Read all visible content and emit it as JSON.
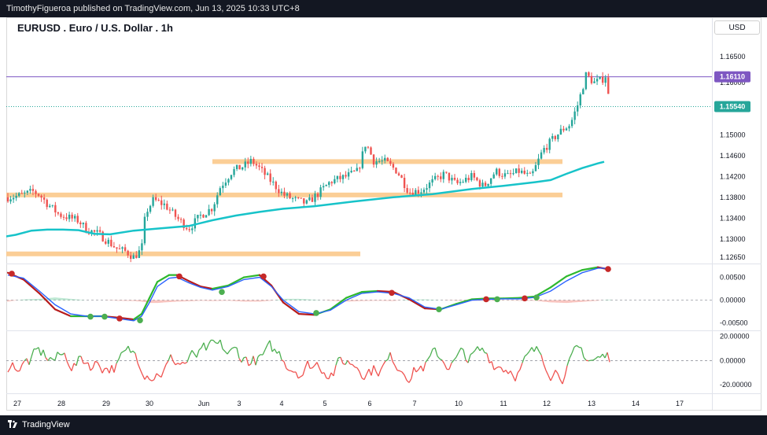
{
  "header": {
    "published_text": "TimothyFigueroa published on TradingView.com, Jun 13, 2025 10:33 UTC+8"
  },
  "chart_title": "EURUSD . Euro / U.S. Dollar . 1h",
  "currency_button": "USD",
  "footer": {
    "brand": "TradingView"
  },
  "colors": {
    "candle_up": "#26a69a",
    "candle_down": "#ef5350",
    "moving_average": "#17c3c9",
    "zone": "#fbc98b",
    "price_line": "#7e57c2",
    "current_price_badge": "#26a69a",
    "macd_fast": "#2962ff",
    "macd_slow_up": "#2eb82e",
    "macd_slow_down": "#b71c1c",
    "osc_up": "#4caf50",
    "osc_down": "#ef5350",
    "dot_up": "#4caf50",
    "dot_down": "#c62828"
  },
  "chart_data": [
    {
      "type": "candlestick",
      "panel": "price",
      "title": "EURUSD . Euro / U.S. Dollar . 1h",
      "y_axis_ticks": [
        "1.16500",
        "1.16000",
        "1.15000",
        "1.14600",
        "1.14200",
        "1.13800",
        "1.13400",
        "1.13000",
        "1.12650"
      ],
      "ylim": [
        1.1253,
        1.1695
      ],
      "price_line": {
        "label": "1.16110",
        "value": 1.1611
      },
      "current_price": {
        "label": "1.15540",
        "value": 1.1554
      },
      "x_ticks": [
        "27",
        "28",
        "29",
        "30",
        "Jun",
        "3",
        "4",
        "5",
        "6",
        "7",
        "10",
        "11",
        "12",
        "13",
        "14",
        "17"
      ],
      "moving_average_approx": [
        [
          0,
          1.1303
        ],
        [
          20,
          1.1308
        ],
        [
          40,
          1.1316
        ],
        [
          60,
          1.1318
        ],
        [
          80,
          1.1318
        ],
        [
          100,
          1.1317
        ],
        [
          120,
          1.131
        ],
        [
          140,
          1.1309
        ],
        [
          170,
          1.1316
        ],
        [
          200,
          1.132
        ],
        [
          240,
          1.1325
        ],
        [
          270,
          1.1336
        ],
        [
          300,
          1.1345
        ],
        [
          330,
          1.1352
        ],
        [
          360,
          1.1358
        ],
        [
          400,
          1.1363
        ],
        [
          450,
          1.1372
        ],
        [
          500,
          1.138
        ],
        [
          550,
          1.1386
        ],
        [
          600,
          1.1396
        ],
        [
          640,
          1.1402
        ],
        [
          680,
          1.1409
        ],
        [
          700,
          1.1413
        ],
        [
          720,
          1.1425
        ],
        [
          740,
          1.1436
        ],
        [
          760,
          1.1445
        ],
        [
          768,
          1.1448
        ]
      ],
      "support_resistance_zones": [
        {
          "y_low": 1.1447,
          "y_high": 1.1453,
          "x_start": 270,
          "x_end": 715
        },
        {
          "y_low": 1.1383,
          "y_high": 1.1389,
          "x_start": 8,
          "x_end": 715
        },
        {
          "y_low": 1.127,
          "y_high": 1.1276,
          "x_start": 8,
          "x_end": 458
        }
      ],
      "price_path_approx": [
        [
          10,
          1.138
        ],
        [
          25,
          1.1383
        ],
        [
          42,
          1.1391
        ],
        [
          50,
          1.1385
        ],
        [
          60,
          1.1368
        ],
        [
          75,
          1.1347
        ],
        [
          90,
          1.134
        ],
        [
          100,
          1.1335
        ],
        [
          110,
          1.1318
        ],
        [
          125,
          1.131
        ],
        [
          140,
          1.1292
        ],
        [
          150,
          1.128
        ],
        [
          160,
          1.1276
        ],
        [
          170,
          1.1265
        ],
        [
          180,
          1.128
        ],
        [
          185,
          1.135
        ],
        [
          195,
          1.1375
        ],
        [
          210,
          1.1365
        ],
        [
          225,
          1.134
        ],
        [
          240,
          1.132
        ],
        [
          255,
          1.1345
        ],
        [
          270,
          1.136
        ],
        [
          280,
          1.14
        ],
        [
          295,
          1.143
        ],
        [
          310,
          1.144
        ],
        [
          320,
          1.145
        ],
        [
          330,
          1.1435
        ],
        [
          345,
          1.141
        ],
        [
          360,
          1.1385
        ],
        [
          375,
          1.1375
        ],
        [
          390,
          1.1368
        ],
        [
          405,
          1.1388
        ],
        [
          420,
          1.141
        ],
        [
          440,
          1.142
        ],
        [
          455,
          1.143
        ],
        [
          465,
          1.1485
        ],
        [
          475,
          1.145
        ],
        [
          490,
          1.1448
        ],
        [
          505,
          1.143
        ],
        [
          520,
          1.139
        ],
        [
          535,
          1.1393
        ],
        [
          550,
          1.141
        ],
        [
          565,
          1.1425
        ],
        [
          580,
          1.1405
        ],
        [
          600,
          1.142
        ],
        [
          615,
          1.14
        ],
        [
          630,
          1.143
        ],
        [
          645,
          1.142
        ],
        [
          660,
          1.143
        ],
        [
          675,
          1.1418
        ],
        [
          690,
          1.147
        ],
        [
          705,
          1.1495
        ],
        [
          715,
          1.151
        ],
        [
          725,
          1.152
        ],
        [
          735,
          1.156
        ],
        [
          745,
          1.1615
        ],
        [
          755,
          1.16
        ],
        [
          765,
          1.1605
        ],
        [
          770,
          1.1614
        ],
        [
          775,
          1.1554
        ]
      ]
    },
    {
      "type": "line",
      "panel": "macd",
      "y_axis_ticks": [
        "0.00500",
        "0.00000",
        "-0.00500"
      ],
      "ylim": [
        -0.0066,
        0.0075
      ],
      "fast_line_approx": [
        [
          10,
          0.0055
        ],
        [
          30,
          0.0048
        ],
        [
          50,
          0.002
        ],
        [
          70,
          -0.001
        ],
        [
          90,
          -0.003
        ],
        [
          110,
          -0.0035
        ],
        [
          130,
          -0.0035
        ],
        [
          150,
          -0.004
        ],
        [
          170,
          -0.0045
        ],
        [
          180,
          -0.0035
        ],
        [
          190,
          -0.0005
        ],
        [
          200,
          0.003
        ],
        [
          215,
          0.0048
        ],
        [
          225,
          0.005
        ],
        [
          240,
          0.0038
        ],
        [
          255,
          0.0028
        ],
        [
          270,
          0.0022
        ],
        [
          290,
          0.003
        ],
        [
          310,
          0.0045
        ],
        [
          330,
          0.005
        ],
        [
          345,
          0.003
        ],
        [
          360,
          0.0
        ],
        [
          380,
          -0.0025
        ],
        [
          400,
          -0.003
        ],
        [
          420,
          -0.0022
        ],
        [
          440,
          0.0
        ],
        [
          460,
          0.0015
        ],
        [
          480,
          0.0018
        ],
        [
          500,
          0.0015
        ],
        [
          520,
          0.0005
        ],
        [
          540,
          -0.0015
        ],
        [
          560,
          -0.002
        ],
        [
          580,
          -0.001
        ],
        [
          600,
          0.0
        ],
        [
          620,
          0.0002
        ],
        [
          640,
          0.0003
        ],
        [
          660,
          0.0003
        ],
        [
          680,
          0.0006
        ],
        [
          700,
          0.002
        ],
        [
          720,
          0.0042
        ],
        [
          740,
          0.006
        ],
        [
          760,
          0.007
        ],
        [
          772,
          0.007
        ]
      ],
      "slow_line_approx": [
        [
          10,
          0.006
        ],
        [
          30,
          0.0045
        ],
        [
          50,
          0.0015
        ],
        [
          70,
          -0.002
        ],
        [
          90,
          -0.0035
        ],
        [
          110,
          -0.0035
        ],
        [
          130,
          -0.0035
        ],
        [
          150,
          -0.0038
        ],
        [
          170,
          -0.0042
        ],
        [
          180,
          -0.003
        ],
        [
          190,
          0.0005
        ],
        [
          200,
          0.004
        ],
        [
          215,
          0.0055
        ],
        [
          225,
          0.0055
        ],
        [
          240,
          0.0042
        ],
        [
          255,
          0.003
        ],
        [
          270,
          0.0025
        ],
        [
          290,
          0.0032
        ],
        [
          310,
          0.005
        ],
        [
          330,
          0.0055
        ],
        [
          345,
          0.0032
        ],
        [
          360,
          -0.0005
        ],
        [
          380,
          -0.003
        ],
        [
          400,
          -0.0032
        ],
        [
          420,
          -0.002
        ],
        [
          440,
          0.0005
        ],
        [
          460,
          0.0018
        ],
        [
          480,
          0.002
        ],
        [
          500,
          0.0018
        ],
        [
          520,
          0.0002
        ],
        [
          540,
          -0.0018
        ],
        [
          560,
          -0.002
        ],
        [
          580,
          -0.0008
        ],
        [
          600,
          0.0002
        ],
        [
          620,
          0.0004
        ],
        [
          640,
          0.0004
        ],
        [
          660,
          0.0005
        ],
        [
          680,
          0.0008
        ],
        [
          700,
          0.0028
        ],
        [
          720,
          0.0052
        ],
        [
          740,
          0.0066
        ],
        [
          760,
          0.0072
        ],
        [
          772,
          0.0068
        ]
      ],
      "markers": [
        {
          "x": 15,
          "y": 0.0058,
          "kind": "down"
        },
        {
          "x": 115,
          "y": -0.0036,
          "kind": "up"
        },
        {
          "x": 133,
          "y": -0.0036,
          "kind": "up"
        },
        {
          "x": 152,
          "y": -0.004,
          "kind": "down"
        },
        {
          "x": 178,
          "y": -0.0044,
          "kind": "up"
        },
        {
          "x": 228,
          "y": 0.0052,
          "kind": "down"
        },
        {
          "x": 282,
          "y": 0.0018,
          "kind": "up"
        },
        {
          "x": 335,
          "y": 0.0052,
          "kind": "down"
        },
        {
          "x": 402,
          "y": -0.0028,
          "kind": "up"
        },
        {
          "x": 498,
          "y": 0.0016,
          "kind": "down"
        },
        {
          "x": 558,
          "y": -0.002,
          "kind": "up"
        },
        {
          "x": 618,
          "y": 0.0002,
          "kind": "down"
        },
        {
          "x": 632,
          "y": 0.0002,
          "kind": "up"
        },
        {
          "x": 667,
          "y": 0.0004,
          "kind": "down"
        },
        {
          "x": 682,
          "y": 0.0006,
          "kind": "up"
        },
        {
          "x": 773,
          "y": 0.0068,
          "kind": "down"
        }
      ]
    },
    {
      "type": "line",
      "panel": "oscillator",
      "y_axis_ticks": [
        "20.00000",
        "0.00000",
        "-20.00000"
      ],
      "ylim": [
        -27,
        25
      ]
    }
  ]
}
